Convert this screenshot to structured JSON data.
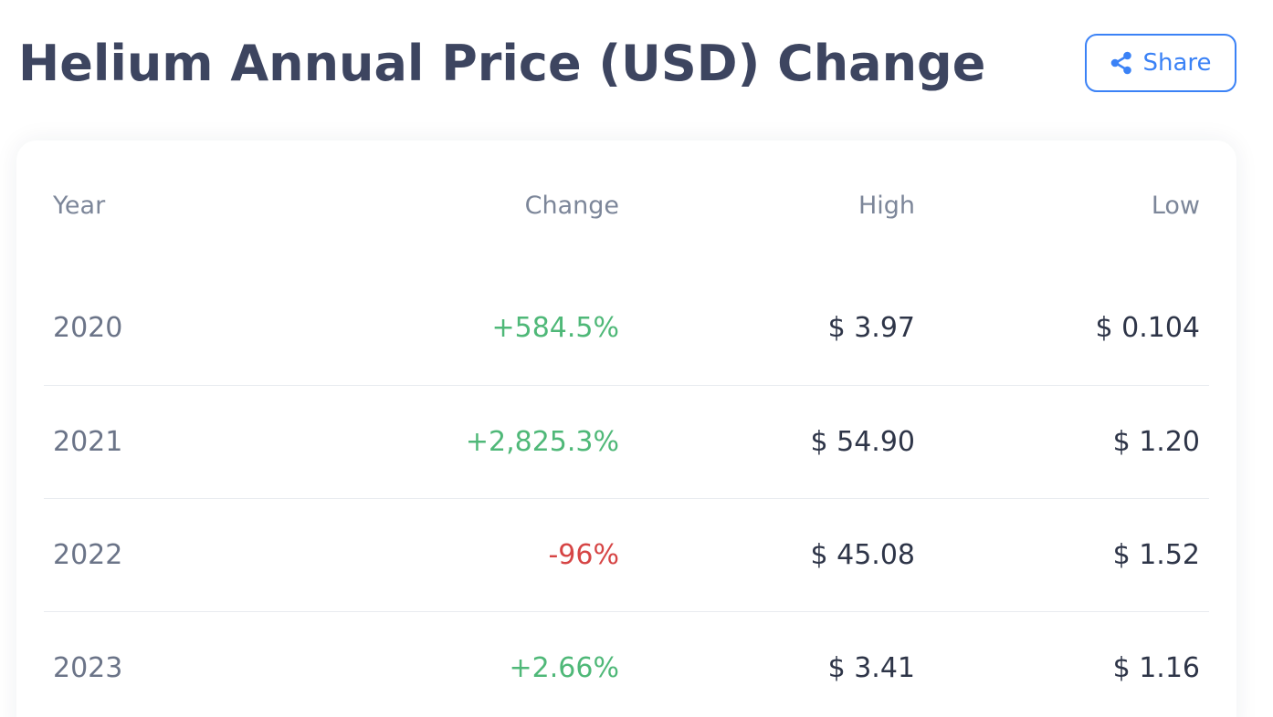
{
  "header": {
    "title": "Helium Annual Price (USD) Change",
    "share_label": "Share",
    "share_icon": "share-icon"
  },
  "colors": {
    "title": "#3d4560",
    "accent": "#3b82f6",
    "positive": "#4fb878",
    "negative": "#d64545",
    "muted": "#7c8699"
  },
  "table": {
    "columns": [
      "Year",
      "Change",
      "High",
      "Low"
    ],
    "rows": [
      {
        "year": "2020",
        "change": "+584.5%",
        "high": "$ 3.97",
        "low": "$ 0.104",
        "direction": "positive"
      },
      {
        "year": "2021",
        "change": "+2,825.3%",
        "high": "$ 54.90",
        "low": "$ 1.20",
        "direction": "positive"
      },
      {
        "year": "2022",
        "change": "-96%",
        "high": "$ 45.08",
        "low": "$ 1.52",
        "direction": "negative"
      },
      {
        "year": "2023",
        "change": "+2.66%",
        "high": "$ 3.41",
        "low": "$ 1.16",
        "direction": "positive"
      }
    ]
  }
}
